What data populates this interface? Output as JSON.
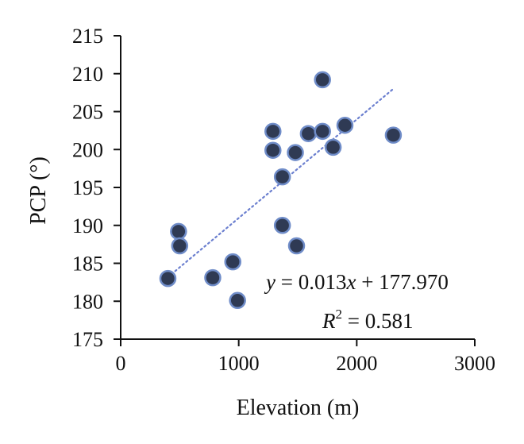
{
  "chart_data": {
    "type": "scatter",
    "xlabel": "Elevation (m)",
    "ylabel": "PCP (°)",
    "xlim": [
      0,
      3000
    ],
    "ylim": [
      175,
      215
    ],
    "xticks": [
      0,
      1000,
      2000,
      3000
    ],
    "yticks": [
      175,
      180,
      185,
      190,
      195,
      200,
      205,
      210,
      215
    ],
    "grid": false,
    "points": [
      {
        "x": 400,
        "y": 183.0
      },
      {
        "x": 490,
        "y": 189.2
      },
      {
        "x": 500,
        "y": 187.3
      },
      {
        "x": 780,
        "y": 183.1
      },
      {
        "x": 950,
        "y": 185.2
      },
      {
        "x": 990,
        "y": 180.1
      },
      {
        "x": 1290,
        "y": 202.4
      },
      {
        "x": 1290,
        "y": 199.9
      },
      {
        "x": 1370,
        "y": 196.4
      },
      {
        "x": 1370,
        "y": 190.0
      },
      {
        "x": 1480,
        "y": 199.6
      },
      {
        "x": 1490,
        "y": 187.3
      },
      {
        "x": 1590,
        "y": 202.1
      },
      {
        "x": 1710,
        "y": 209.2
      },
      {
        "x": 1710,
        "y": 202.4
      },
      {
        "x": 1800,
        "y": 200.3
      },
      {
        "x": 1900,
        "y": 203.2
      },
      {
        "x": 2310,
        "y": 201.9
      }
    ],
    "trendline": {
      "type": "linear",
      "slope": 0.013,
      "intercept": 177.97,
      "x_range": [
        400,
        2310
      ]
    },
    "equation": {
      "y": "y",
      "eq_rest": " = 0.013",
      "x": "x",
      "eq_tail": " + 177.970"
    },
    "r_squared": {
      "R": "R",
      "sup": "2",
      "value": " = 0.581"
    },
    "colors": {
      "marker_fill": "#2f3a54",
      "marker_stroke": "#6f8cc8",
      "trendline": "#6b7fcf"
    }
  }
}
